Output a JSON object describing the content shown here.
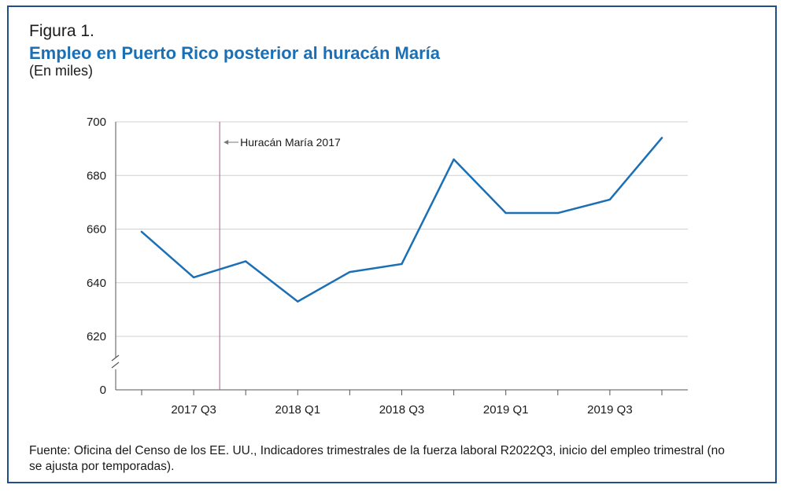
{
  "figure": {
    "label": "Figura 1.",
    "title": "Empleo en Puerto Rico posterior al huracán María",
    "subtitle": "(En miles)",
    "source": "Fuente: Oficina del Censo de los EE. UU., Indicadores trimestrales de la fuerza laboral R2022Q3, inicio del empleo trimestral (no se ajusta por temporadas)."
  },
  "colors": {
    "frame": "#1f4e8c",
    "title": "#1b6fb5",
    "series": "#1b6fb5",
    "event_line": "#b05a8a",
    "grid": "#d0d0d0",
    "axis": "#555555"
  },
  "chart_data": {
    "type": "line",
    "title": "Empleo en Puerto Rico posterior al huracán María",
    "xlabel": "",
    "ylabel": "",
    "x": [
      "2017 Q2",
      "2017 Q3",
      "2017 Q4",
      "2018 Q1",
      "2018 Q2",
      "2018 Q3",
      "2018 Q4",
      "2019 Q1",
      "2019 Q2",
      "2019 Q3",
      "2019 Q4"
    ],
    "x_tick_labels": [
      "",
      "2017 Q3",
      "",
      "2018 Q1",
      "",
      "2018 Q3",
      "",
      "2019 Q1",
      "",
      "2019 Q3",
      ""
    ],
    "series": [
      {
        "values": [
          659,
          642,
          648,
          633,
          644,
          647,
          686,
          666,
          666,
          671,
          694
        ]
      }
    ],
    "ylim": [
      620,
      700
    ],
    "y_ticks": [
      620,
      640,
      660,
      680,
      700
    ],
    "y_zero_label": "0",
    "axis_break": true,
    "grid": true,
    "legend": "none",
    "annotation": {
      "label": "Huracán María 2017",
      "position": "between 2017 Q3 and 2017 Q4"
    }
  }
}
